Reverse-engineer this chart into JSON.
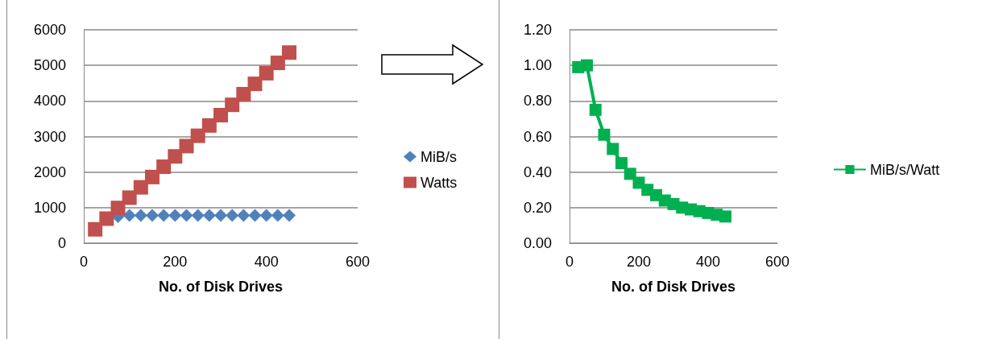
{
  "chart_data": [
    {
      "type": "scatter",
      "xlabel": "No. of Disk Drives",
      "x": [
        25,
        50,
        75,
        100,
        125,
        150,
        175,
        200,
        225,
        250,
        275,
        300,
        325,
        350,
        375,
        400,
        425,
        450
      ],
      "series": [
        {
          "name": "MiB/s",
          "color": "#4f81bd",
          "marker": "diamond",
          "values": [
            null,
            null,
            750,
            780,
            780,
            780,
            780,
            780,
            780,
            780,
            780,
            780,
            780,
            780,
            780,
            780,
            780,
            780
          ]
        },
        {
          "name": "Watts",
          "color": "#c0504d",
          "marker": "square",
          "values": [
            390,
            690,
            990,
            1280,
            1570,
            1860,
            2150,
            2440,
            2730,
            3020,
            3310,
            3600,
            3890,
            4190,
            4480,
            4780,
            5070,
            5360
          ]
        }
      ],
      "xlim": [
        0,
        600
      ],
      "xticks": [
        0,
        200,
        400,
        600
      ],
      "ylim": [
        0,
        6000
      ],
      "yticks": [
        0,
        1000,
        2000,
        3000,
        4000,
        5000,
        6000
      ],
      "grid": "y",
      "legend": "right"
    },
    {
      "type": "line",
      "xlabel": "No. of Disk Drives",
      "x": [
        25,
        50,
        75,
        100,
        125,
        150,
        175,
        200,
        225,
        250,
        275,
        300,
        325,
        350,
        375,
        400,
        425,
        450
      ],
      "series": [
        {
          "name": "MiB/s/Watt",
          "color": "#00b050",
          "values": [
            0.99,
            1.0,
            0.75,
            0.61,
            0.53,
            0.45,
            0.39,
            0.34,
            0.3,
            0.27,
            0.24,
            0.22,
            0.2,
            0.19,
            0.18,
            0.17,
            0.16,
            0.15
          ]
        }
      ],
      "xlim": [
        0,
        600
      ],
      "xticks": [
        0,
        200,
        400,
        600
      ],
      "ylim": [
        0,
        1.2
      ],
      "yticks": [
        {
          "value": 0,
          "label": "0.00"
        },
        {
          "value": 0.2,
          "label": "0.20"
        },
        {
          "value": 0.4,
          "label": "0.40"
        },
        {
          "value": 0.6,
          "label": "0.60"
        },
        {
          "value": 0.8,
          "label": "0.80"
        },
        {
          "value": 1.0,
          "label": "1.00"
        },
        {
          "value": 1.2,
          "label": "1.20"
        }
      ],
      "grid": "y",
      "legend": "right",
      "marker": "square",
      "line_style": "solid"
    }
  ]
}
